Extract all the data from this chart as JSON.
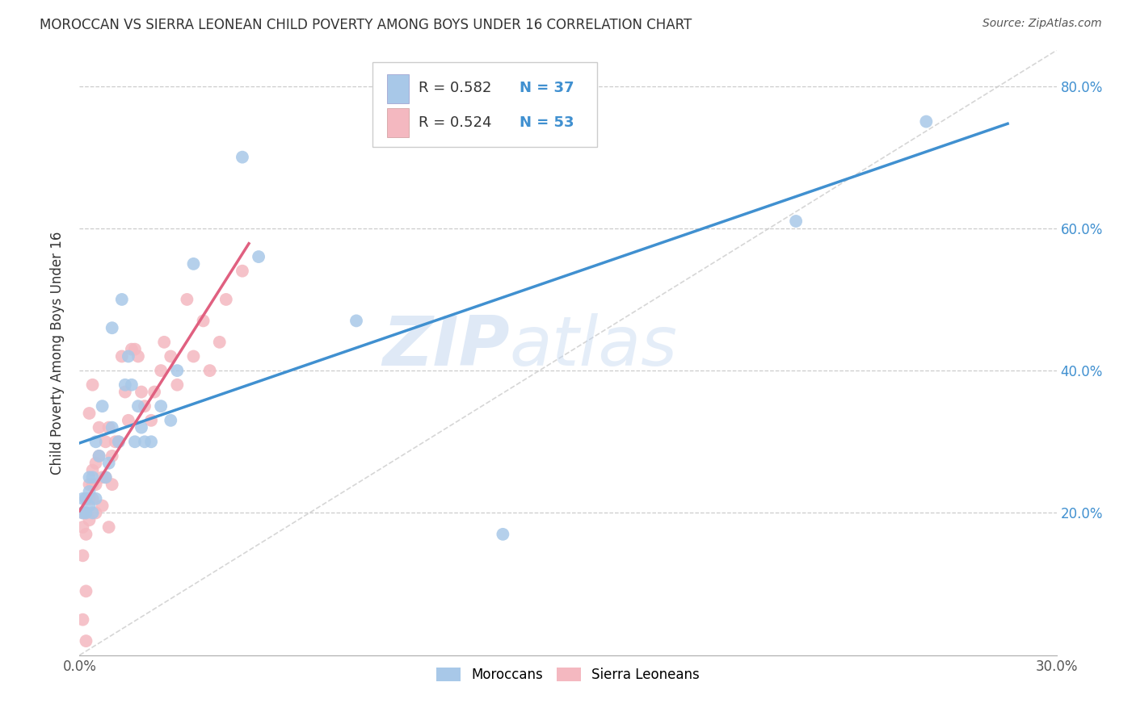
{
  "title": "MOROCCAN VS SIERRA LEONEAN CHILD POVERTY AMONG BOYS UNDER 16 CORRELATION CHART",
  "source": "Source: ZipAtlas.com",
  "ylabel": "Child Poverty Among Boys Under 16",
  "xlim": [
    0.0,
    0.3
  ],
  "ylim": [
    0.0,
    0.85
  ],
  "x_ticks": [
    0.0,
    0.3
  ],
  "y_ticks": [
    0.2,
    0.4,
    0.6,
    0.8
  ],
  "moroccan_color": "#a8c8e8",
  "sierraleonean_color": "#f4b8c0",
  "moroccan_line_color": "#4090d0",
  "sierraleonean_line_color": "#e06080",
  "diag_line_color": "#cccccc",
  "right_tick_color": "#4090d0",
  "R_moroccan": 0.582,
  "N_moroccan": 37,
  "R_sierraleonean": 0.524,
  "N_sierraleonean": 53,
  "moroccan_x": [
    0.001,
    0.001,
    0.002,
    0.002,
    0.003,
    0.003,
    0.003,
    0.004,
    0.004,
    0.005,
    0.005,
    0.006,
    0.007,
    0.008,
    0.009,
    0.01,
    0.01,
    0.012,
    0.013,
    0.014,
    0.015,
    0.016,
    0.017,
    0.018,
    0.019,
    0.02,
    0.022,
    0.025,
    0.028,
    0.03,
    0.035,
    0.05,
    0.055,
    0.085,
    0.13,
    0.22,
    0.26
  ],
  "moroccan_y": [
    0.2,
    0.22,
    0.2,
    0.22,
    0.21,
    0.23,
    0.25,
    0.2,
    0.25,
    0.22,
    0.3,
    0.28,
    0.35,
    0.25,
    0.27,
    0.46,
    0.32,
    0.3,
    0.5,
    0.38,
    0.42,
    0.38,
    0.3,
    0.35,
    0.32,
    0.3,
    0.3,
    0.35,
    0.33,
    0.4,
    0.55,
    0.7,
    0.56,
    0.47,
    0.17,
    0.61,
    0.75
  ],
  "sierraleonean_x": [
    0.001,
    0.001,
    0.001,
    0.002,
    0.002,
    0.002,
    0.003,
    0.003,
    0.003,
    0.004,
    0.004,
    0.004,
    0.005,
    0.005,
    0.005,
    0.006,
    0.006,
    0.007,
    0.007,
    0.008,
    0.008,
    0.009,
    0.009,
    0.01,
    0.01,
    0.011,
    0.012,
    0.013,
    0.014,
    0.015,
    0.016,
    0.017,
    0.018,
    0.019,
    0.02,
    0.022,
    0.023,
    0.025,
    0.026,
    0.028,
    0.03,
    0.033,
    0.035,
    0.038,
    0.04,
    0.043,
    0.045,
    0.05,
    0.003,
    0.004,
    0.002,
    0.001,
    0.002
  ],
  "sierraleonean_y": [
    0.18,
    0.2,
    0.14,
    0.22,
    0.2,
    0.17,
    0.22,
    0.24,
    0.19,
    0.24,
    0.22,
    0.26,
    0.2,
    0.24,
    0.27,
    0.28,
    0.32,
    0.25,
    0.21,
    0.3,
    0.25,
    0.32,
    0.18,
    0.24,
    0.28,
    0.3,
    0.3,
    0.42,
    0.37,
    0.33,
    0.43,
    0.43,
    0.42,
    0.37,
    0.35,
    0.33,
    0.37,
    0.4,
    0.44,
    0.42,
    0.38,
    0.5,
    0.42,
    0.47,
    0.4,
    0.44,
    0.5,
    0.54,
    0.34,
    0.38,
    0.09,
    0.05,
    0.02
  ],
  "watermark_zip": "ZIP",
  "watermark_atlas": "atlas",
  "background_color": "#ffffff",
  "grid_color": "#cccccc",
  "legend_box_color": "#e8e8e8",
  "legend_R_color": "#333333",
  "legend_N_color": "#4090d0"
}
